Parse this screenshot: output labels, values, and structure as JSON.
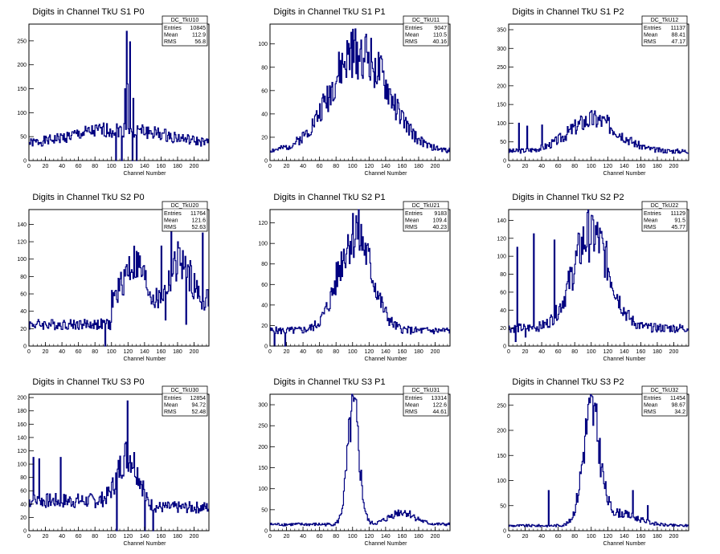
{
  "panels": [
    {
      "title": "Digits in Channel TkU S1 P0",
      "stats": {
        "name": "DC_TkU10",
        "entries": "10845",
        "mean": "112.9",
        "rms": "56.8"
      },
      "xlabel": "Channel Number",
      "ylim": [
        0,
        285
      ],
      "yticks": [
        0,
        50,
        100,
        150,
        200,
        250
      ],
      "shape": "flat",
      "seed": 1,
      "spikes": [
        [
          118,
          270
        ],
        [
          122,
          248
        ],
        [
          119,
          160
        ],
        [
          116,
          150
        ],
        [
          126,
          130
        ]
      ],
      "dips": [
        [
          105,
          0
        ],
        [
          112,
          0
        ],
        [
          125,
          0
        ],
        [
          130,
          0
        ]
      ]
    },
    {
      "title": "Digits in Channel TkU S1 P1",
      "stats": {
        "name": "DC_TkU11",
        "entries": "9047",
        "mean": "110.5",
        "rms": "40.16"
      },
      "xlabel": "Channel Number",
      "ylim": [
        0,
        117
      ],
      "yticks": [
        0,
        20,
        40,
        60,
        80,
        100
      ],
      "shape": "wide",
      "seed": 2,
      "spikes": [
        [
          98,
          110
        ]
      ],
      "dips": []
    },
    {
      "title": "Digits in Channel TkU S1 P2",
      "stats": {
        "name": "DC_TkU12",
        "entries": "11137",
        "mean": "88.41",
        "rms": "47.17"
      },
      "xlabel": "Channel Number",
      "ylim": [
        0,
        365
      ],
      "yticks": [
        0,
        50,
        100,
        150,
        200,
        250,
        300,
        350
      ],
      "shape": "hump",
      "seed": 3,
      "spikes": [
        [
          40,
          95
        ],
        [
          22,
          92
        ],
        [
          12,
          100
        ]
      ],
      "dips": []
    },
    {
      "title": "Digits in Channel TkU S2 P0",
      "stats": {
        "name": "DC_TkU20",
        "entries": "11764",
        "mean": "121.6",
        "rms": "52.63"
      },
      "xlabel": "Channel Number",
      "ylim": [
        0,
        157
      ],
      "yticks": [
        0,
        20,
        40,
        60,
        80,
        100,
        120,
        140
      ],
      "shape": "rising",
      "seed": 4,
      "spikes": [
        [
          172,
          148
        ],
        [
          210,
          130
        ],
        [
          180,
          120
        ],
        [
          160,
          115
        ]
      ],
      "dips": [
        [
          92,
          0
        ],
        [
          165,
          30
        ],
        [
          190,
          25
        ]
      ]
    },
    {
      "title": "Digits in Channel TkU S2 P1",
      "stats": {
        "name": "DC_TkU21",
        "entries": "9183",
        "mean": "109.4",
        "rms": "40.23"
      },
      "xlabel": "Channel Number",
      "ylim": [
        0,
        133
      ],
      "yticks": [
        0,
        20,
        40,
        60,
        80,
        100,
        120
      ],
      "shape": "peak",
      "seed": 5,
      "spikes": [
        [
          104,
          127
        ]
      ],
      "dips": [
        [
          5,
          0
        ],
        [
          18,
          0
        ]
      ]
    },
    {
      "title": "Digits in Channel TkU S2 P2",
      "stats": {
        "name": "DC_TkU22",
        "entries": "11129",
        "mean": "91.5",
        "rms": "45.77"
      },
      "xlabel": "Channel Number",
      "ylim": [
        0,
        152
      ],
      "yticks": [
        0,
        20,
        40,
        60,
        80,
        100,
        120,
        140
      ],
      "shape": "peak2",
      "seed": 6,
      "spikes": [
        [
          101,
          145
        ],
        [
          30,
          125
        ],
        [
          55,
          118
        ],
        [
          10,
          110
        ]
      ],
      "dips": [
        [
          8,
          5
        ],
        [
          20,
          10
        ]
      ]
    },
    {
      "title": "Digits in Channel TkU S3 P0",
      "stats": {
        "name": "DC_TkU30",
        "entries": "12854",
        "mean": "94.72",
        "rms": "52.48"
      },
      "xlabel": "Channel Number",
      "ylim": [
        0,
        205
      ],
      "yticks": [
        0,
        20,
        40,
        60,
        80,
        100,
        120,
        140,
        160,
        180,
        200
      ],
      "shape": "s3p0",
      "seed": 7,
      "spikes": [
        [
          119,
          195
        ],
        [
          5,
          110
        ],
        [
          12,
          108
        ],
        [
          38,
          110
        ]
      ],
      "dips": [
        [
          106,
          0
        ],
        [
          140,
          0
        ],
        [
          150,
          0
        ]
      ]
    },
    {
      "title": "Digits in Channel TkU S3 P1",
      "stats": {
        "name": "DC_TkU31",
        "entries": "13314",
        "mean": "122.6",
        "rms": "44.61"
      },
      "xlabel": "Channel Number",
      "ylim": [
        0,
        325
      ],
      "yticks": [
        0,
        50,
        100,
        150,
        200,
        250,
        300
      ],
      "shape": "narrow",
      "seed": 8,
      "spikes": [
        [
          101,
          308
        ]
      ],
      "dips": []
    },
    {
      "title": "Digits in Channel TkU S3 P2",
      "stats": {
        "name": "DC_TkU32",
        "entries": "11454",
        "mean": "98.67",
        "rms": "34.2"
      },
      "xlabel": "Channel Number",
      "ylim": [
        0,
        272
      ],
      "yticks": [
        0,
        50,
        100,
        150,
        200,
        250
      ],
      "shape": "narrow2",
      "seed": 9,
      "spikes": [
        [
          98,
          255
        ],
        [
          48,
          80
        ],
        [
          150,
          80
        ],
        [
          168,
          50
        ]
      ],
      "dips": []
    }
  ],
  "stat_labels": {
    "entries": "Entries",
    "mean": "Mean",
    "rms": "RMS"
  },
  "chart_data": {
    "type": "line",
    "xlim": [
      0,
      218
    ],
    "xticks": [
      0,
      20,
      40,
      60,
      80,
      100,
      120,
      140,
      160,
      180,
      200
    ],
    "line_color": "#000080"
  }
}
